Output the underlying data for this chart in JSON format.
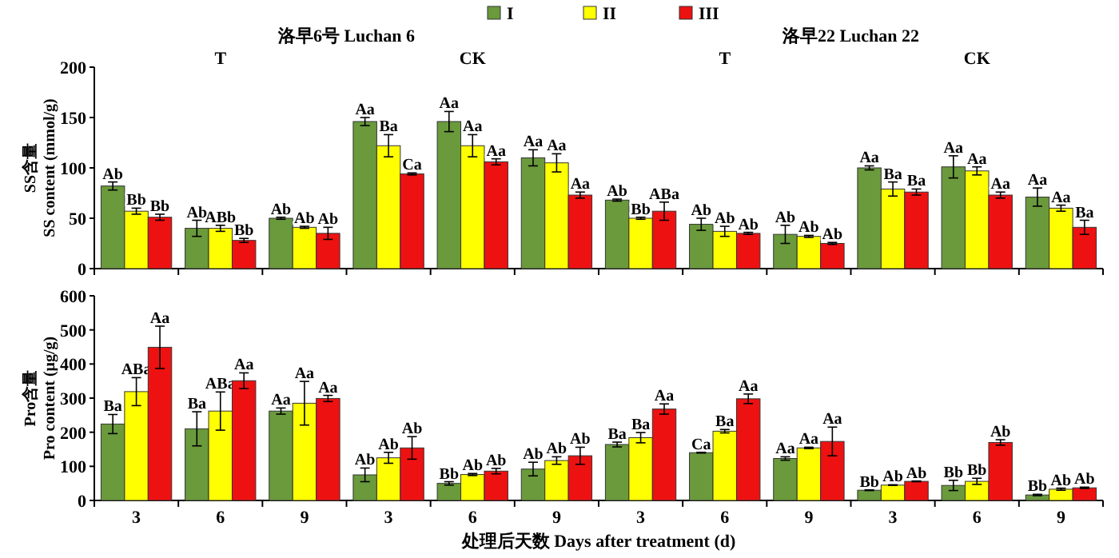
{
  "chart_data": [
    {
      "type": "bar",
      "ylabel": "SS含量\nSS content (mmol/g)",
      "categories": [
        null,
        null,
        null,
        null,
        null,
        null,
        null,
        null,
        null,
        null,
        null,
        null
      ],
      "ylim": [
        0,
        200
      ],
      "yticks": [
        0,
        50,
        100,
        150,
        200
      ],
      "tick_labels": "y",
      "legend": "top",
      "annotations": [
        "洛早6号 Luchan 6",
        "T",
        "CK",
        "洛早22 Luchan 22",
        "T",
        "CK"
      ],
      "series": [
        {
          "name": "I",
          "color": "#6a9a3c",
          "values": [
            82,
            40,
            50,
            146,
            146,
            110,
            68,
            44,
            34,
            100,
            101,
            71
          ],
          "errors": [
            4,
            8,
            1,
            4,
            10,
            8,
            1,
            6,
            9,
            2,
            11,
            9
          ],
          "value_labels": [
            "Ab",
            "Ab",
            "Ab",
            "Aa",
            "Aa",
            "Aa",
            "Ab",
            "Ab",
            "Ab",
            "Aa",
            "Aa",
            "Aa"
          ]
        },
        {
          "name": "II",
          "color": "#ffff00",
          "values": [
            57,
            40,
            41,
            122,
            122,
            105,
            50,
            37,
            32,
            79,
            97,
            60
          ],
          "errors": [
            3,
            3,
            1,
            11,
            11,
            9,
            1,
            5,
            1,
            7,
            4,
            3
          ],
          "value_labels": [
            "Bb",
            "ABb",
            "Ab",
            "Ba",
            "Aa",
            "Aa",
            "Bb",
            "Ab",
            "Ab",
            "Ba",
            "Aa",
            "Aa"
          ]
        },
        {
          "name": "III",
          "color": "#ee1111",
          "values": [
            51,
            28,
            35,
            94,
            106,
            73,
            57,
            35,
            25,
            76,
            73,
            41
          ],
          "errors": [
            3,
            2,
            6,
            1,
            3,
            3,
            9,
            1,
            1,
            3,
            3,
            7
          ],
          "value_labels": [
            "Bb",
            "Bb",
            "Ab",
            "Ca",
            "Aa",
            "Aa",
            "ABa",
            "Ab",
            "Ab",
            "Ba",
            "Aa",
            "Ba"
          ]
        }
      ]
    },
    {
      "type": "bar",
      "ylabel": "Pro含量\nPro content (μg/g)",
      "xlabel": "处理后天数 Days after treatment (d)",
      "categories": [
        "3",
        "6",
        "9",
        "3",
        "6",
        "9",
        "3",
        "6",
        "9",
        "3",
        "6",
        "9"
      ],
      "ylim": [
        0,
        600
      ],
      "yticks": [
        0,
        100,
        200,
        300,
        400,
        500,
        600
      ],
      "series": [
        {
          "color": "#6a9a3c",
          "values": [
            224,
            210,
            262,
            75,
            50,
            92,
            164,
            140,
            123,
            30,
            44,
            16
          ],
          "errors": [
            28,
            50,
            9,
            20,
            5,
            20,
            7,
            1,
            5,
            1,
            15,
            2
          ],
          "value_labels": [
            "Ba",
            "Ba",
            "Aa",
            "Ab",
            "Bb",
            "Ab",
            "Ba",
            "Ca",
            "Aa",
            "Bb",
            "Bb",
            "Bb"
          ]
        },
        {
          "color": "#ffff00",
          "values": [
            319,
            262,
            285,
            125,
            76,
            117,
            184,
            203,
            154,
            45,
            56,
            33
          ],
          "errors": [
            41,
            56,
            64,
            16,
            3,
            11,
            15,
            5,
            2,
            1,
            9,
            3
          ],
          "value_labels": [
            "ABa",
            "ABa",
            "Aa",
            "Ab",
            "Ab",
            "Ab",
            "Ba",
            "Ba",
            "Aa",
            "Ab",
            "Bb",
            "Ab"
          ]
        },
        {
          "color": "#ee1111",
          "values": [
            449,
            351,
            299,
            154,
            86,
            131,
            268,
            298,
            173,
            56,
            170,
            37
          ],
          "errors": [
            62,
            23,
            9,
            33,
            8,
            25,
            15,
            14,
            42,
            1,
            8,
            2
          ],
          "value_labels": [
            "Aa",
            "Aa",
            "Aa",
            "Ab",
            "Ab",
            "Ab",
            "Aa",
            "Aa",
            "Aa",
            "Ab",
            "Ab",
            "Ab"
          ]
        }
      ]
    }
  ]
}
